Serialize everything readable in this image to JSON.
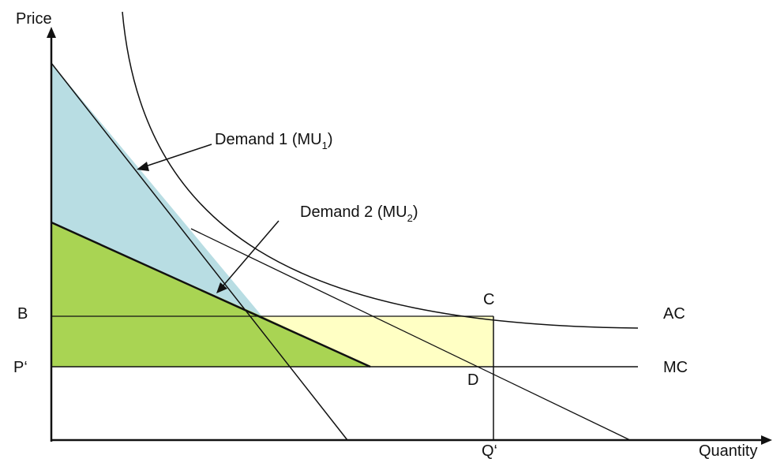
{
  "axes": {
    "y_label": "Price",
    "x_label": "Quantity"
  },
  "price_labels": {
    "b": "B",
    "p_prime": "P‘"
  },
  "quantity_labels": {
    "q_prime": "Q‘"
  },
  "point_labels": {
    "c": "C",
    "d": "D"
  },
  "curve_labels": {
    "ac": "AC",
    "mc": "MC",
    "demand1_text": "Demand 1 (MU",
    "demand1_sub": "1",
    "demand2_text": "Demand 2 (MU",
    "demand2_sub": "2",
    "close_paren": ")"
  },
  "colors": {
    "consumer_surplus_1": "#b8dde3",
    "consumer_surplus_2": "#a9d453",
    "loss_rectangle": "#ffffc4",
    "line": "#111111"
  }
}
